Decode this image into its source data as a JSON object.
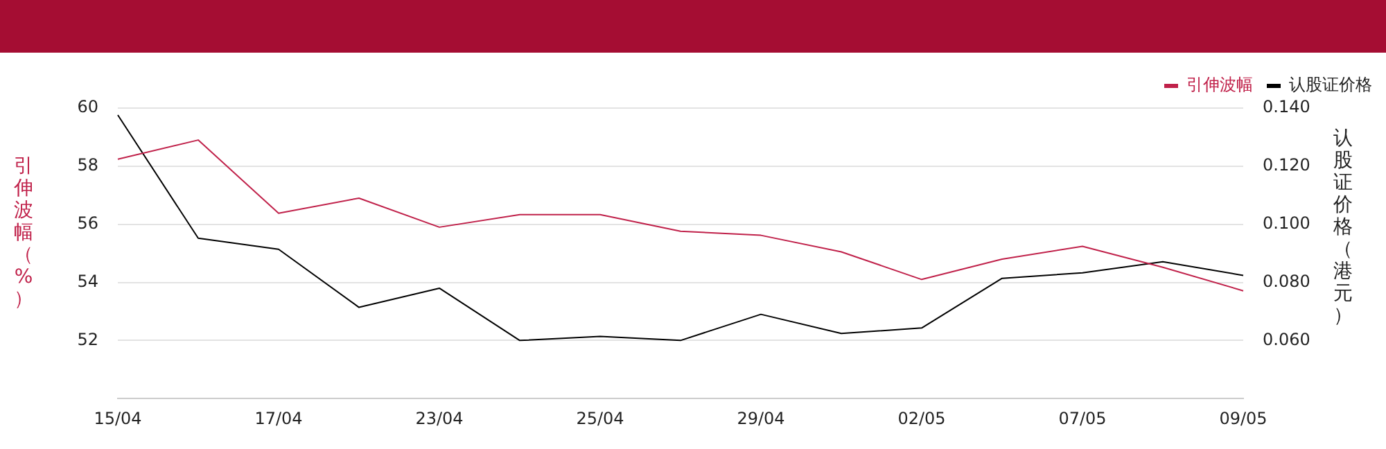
{
  "chart_data": {
    "type": "line",
    "ylabel": "引伸波幅（%）",
    "y2label": "认股证价格（港元）",
    "categories": [
      "15/04",
      null,
      "17/04",
      null,
      "23/04",
      null,
      "25/04",
      null,
      "29/04",
      null,
      "02/05",
      null,
      "07/05",
      null,
      "09/05"
    ],
    "series": [
      {
        "name": "引伸波幅",
        "color": "#c0214a",
        "values": [
          58.24,
          58.9,
          56.38,
          56.9,
          55.9,
          56.33,
          56.33,
          55.76,
          55.62,
          55.05,
          54.1,
          54.8,
          55.24,
          54.52,
          53.71
        ]
      },
      {
        "name": "认股证价格",
        "color": "#000000",
        "axis": "y2",
        "values": [
          0.1376,
          0.0952,
          0.0914,
          0.0714,
          0.078,
          0.06,
          0.0614,
          0.06,
          0.069,
          0.0624,
          0.0643,
          0.0814,
          0.0833,
          0.0871,
          0.0824
        ]
      }
    ],
    "ylim": [
      50,
      60
    ],
    "yticks": [
      52,
      54,
      56,
      58,
      60
    ],
    "y2lim": [
      0.04,
      0.14
    ],
    "y2ticks": [
      {
        "value": 0.06,
        "label": "0.060"
      },
      {
        "value": 0.08,
        "label": "0.080"
      },
      {
        "value": 0.1,
        "label": "0.100"
      },
      {
        "value": 0.12,
        "label": "0.120"
      },
      {
        "value": 0.14,
        "label": "0.140"
      }
    ],
    "grid": "y",
    "legend": "top right",
    "marker": "none",
    "line_style": "solid"
  }
}
